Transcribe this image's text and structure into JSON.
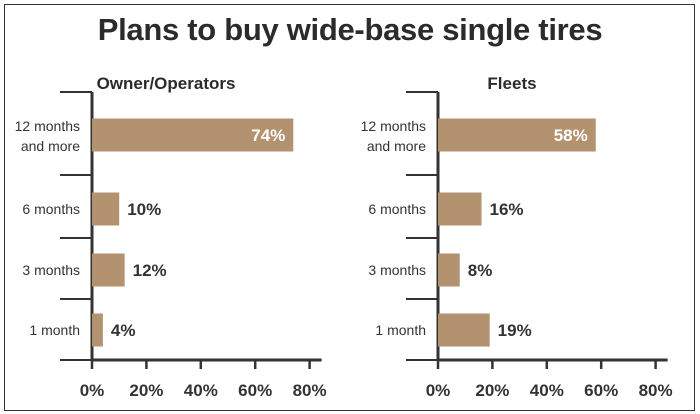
{
  "title": "Plans to buy wide-base single tires",
  "colors": {
    "bar": "#b39270",
    "axis": "#333333",
    "label_inside": "#ffffff",
    "label_outside": "#333333"
  },
  "chart_data": [
    {
      "type": "bar",
      "orientation": "horizontal",
      "title": "Owner/Operators",
      "categories": [
        "12 months and more",
        "6 months",
        "3 months",
        "1 month"
      ],
      "category_lines": [
        [
          "12 months",
          "and more"
        ],
        [
          "6 months"
        ],
        [
          "3 months"
        ],
        [
          "1 month"
        ]
      ],
      "values": [
        74,
        10,
        12,
        4
      ],
      "value_labels": [
        "74%",
        "10%",
        "12%",
        "4%"
      ],
      "xlim": [
        0,
        80
      ],
      "xticks": [
        0,
        20,
        40,
        60,
        80
      ],
      "xtick_labels": [
        "0%",
        "20%",
        "40%",
        "60%",
        "80%"
      ],
      "grid": false
    },
    {
      "type": "bar",
      "orientation": "horizontal",
      "title": "Fleets",
      "categories": [
        "12 months and more",
        "6 months",
        "3 months",
        "1 month"
      ],
      "category_lines": [
        [
          "12 months",
          "and more"
        ],
        [
          "6 months"
        ],
        [
          "3 months"
        ],
        [
          "1 month"
        ]
      ],
      "values": [
        58,
        16,
        8,
        19
      ],
      "value_labels": [
        "58%",
        "16%",
        "8%",
        "19%"
      ],
      "xlim": [
        0,
        80
      ],
      "xticks": [
        0,
        20,
        40,
        60,
        80
      ],
      "xtick_labels": [
        "0%",
        "20%",
        "40%",
        "60%",
        "80%"
      ],
      "grid": false
    }
  ]
}
